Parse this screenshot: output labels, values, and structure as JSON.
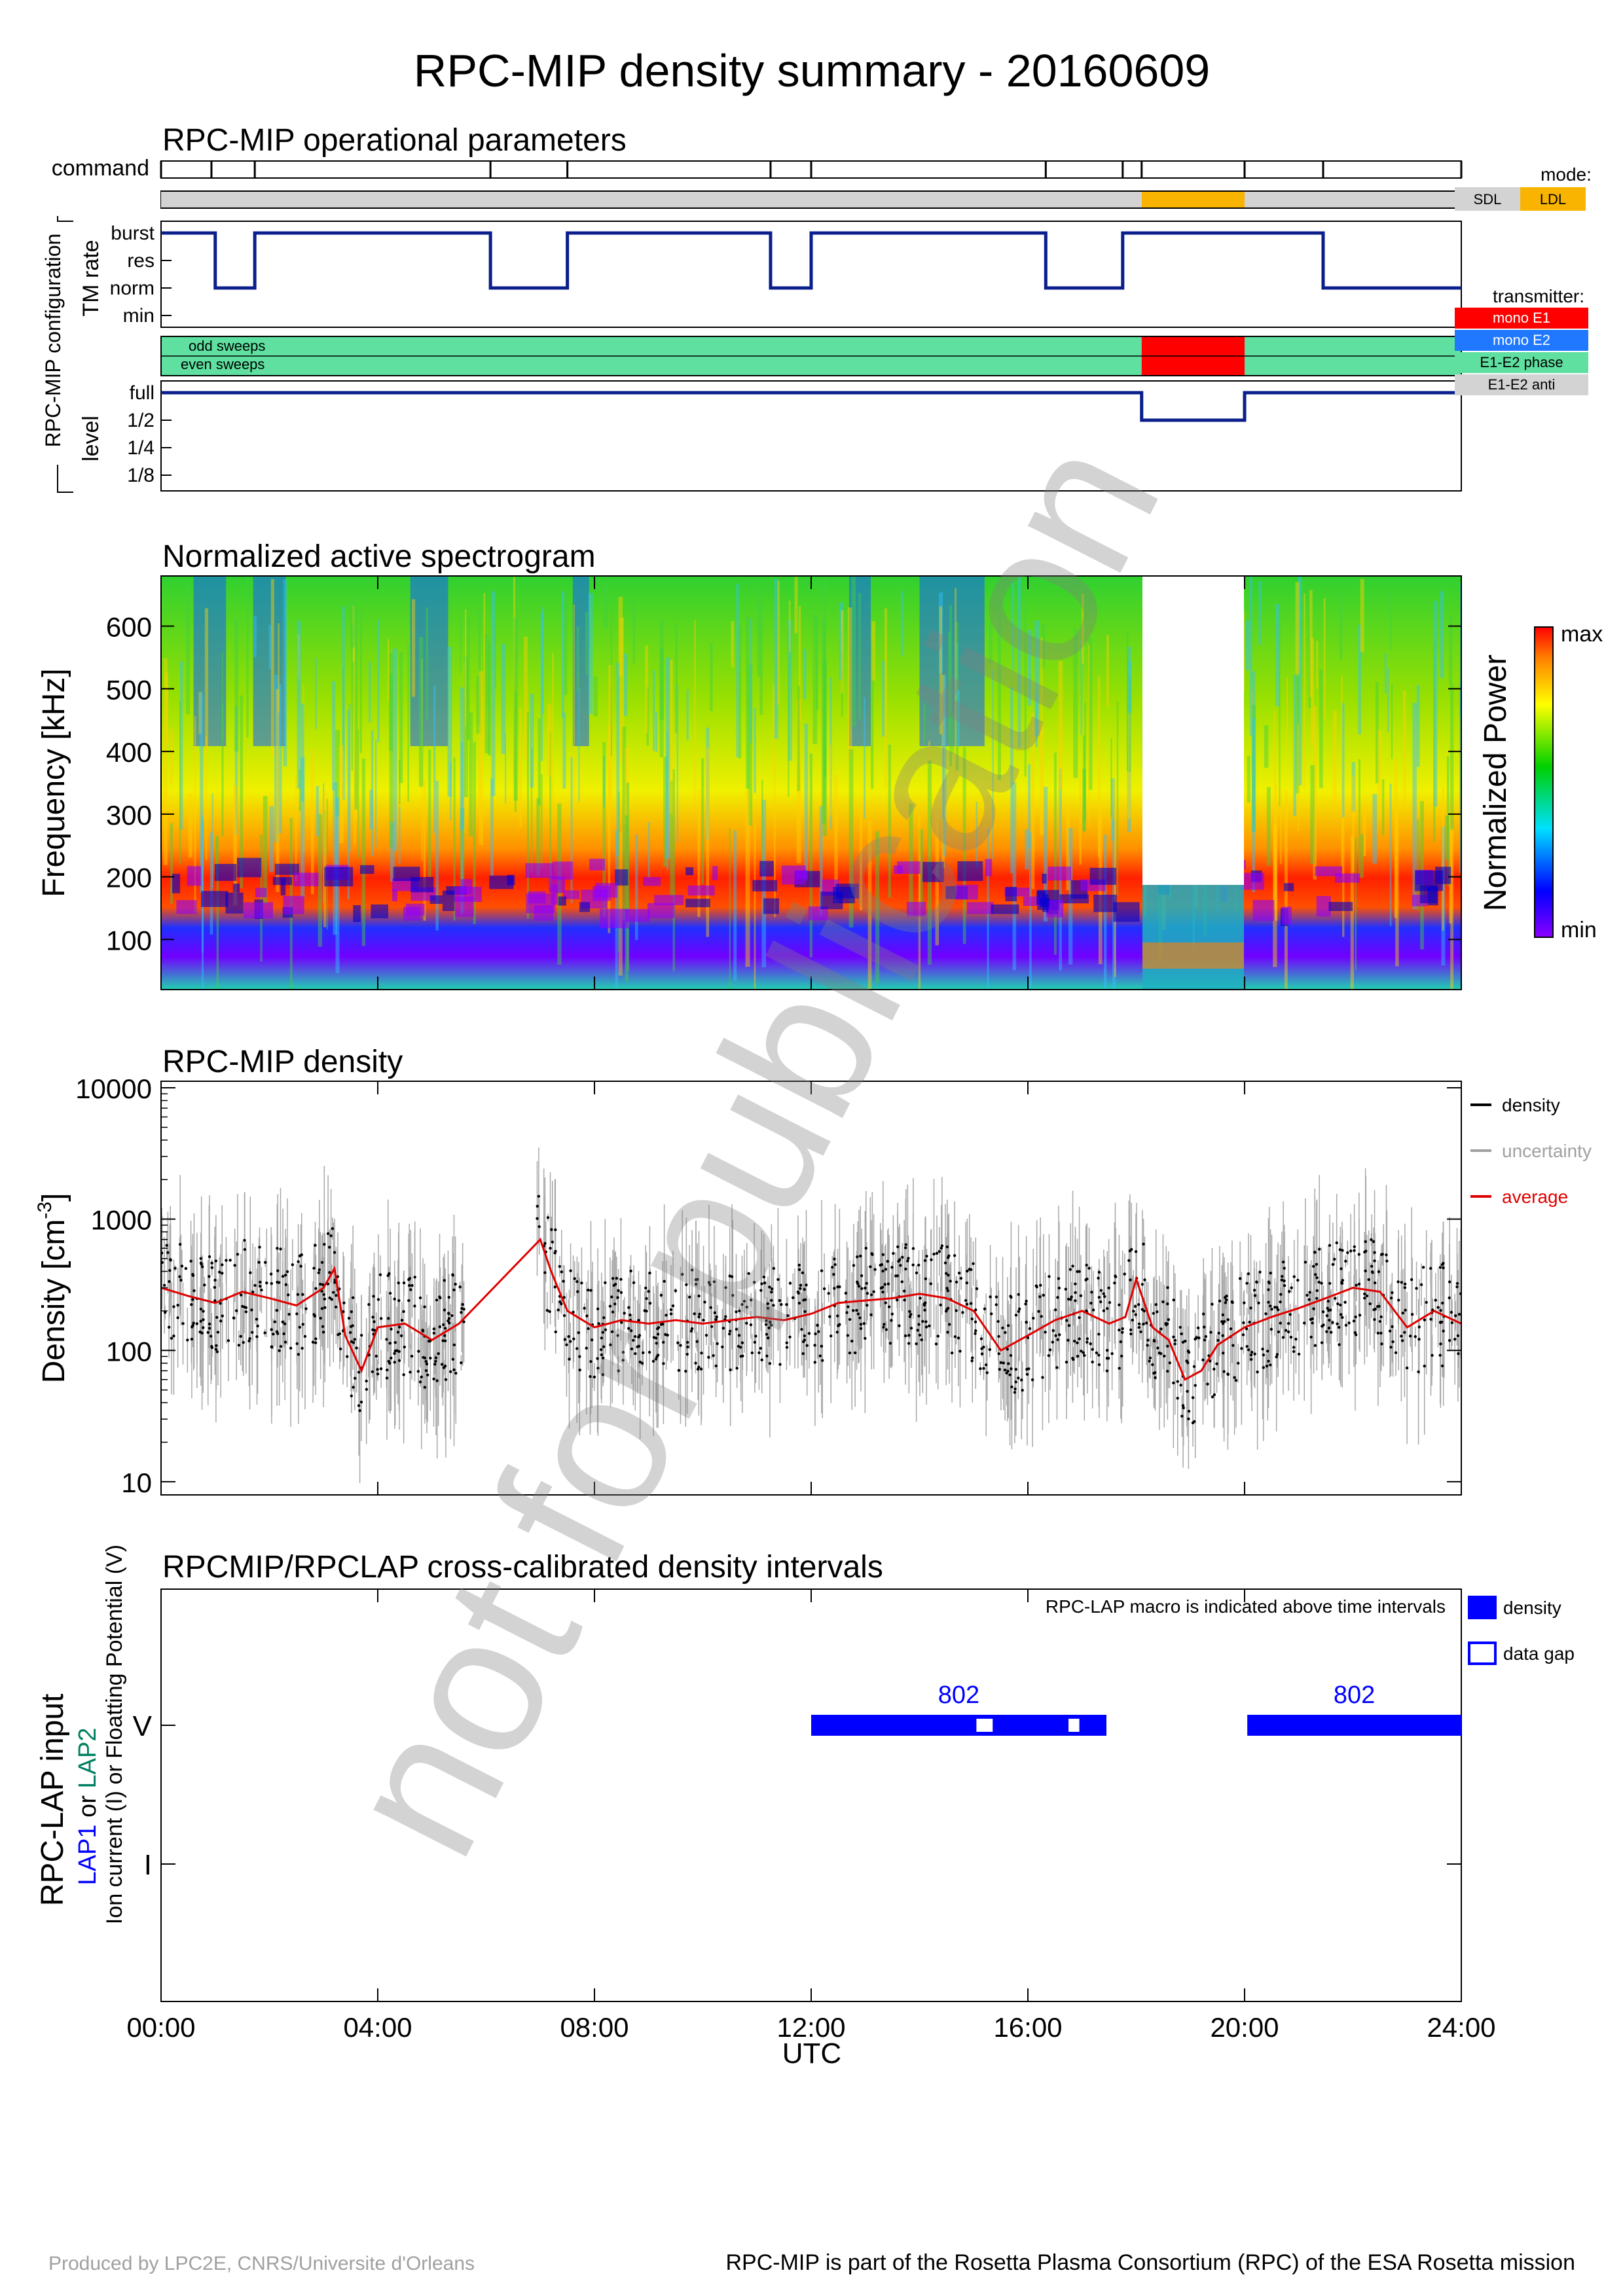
{
  "title": "RPC-MIP density summary - 20160609",
  "ops": {
    "title": "RPC-MIP operational parameters",
    "command_label": "command",
    "command_times": [
      0,
      0.93,
      1.73,
      6.08,
      7.5,
      11.25,
      12.0,
      16.33,
      17.75,
      18.1,
      20.0,
      21.45,
      24.0
    ],
    "mode_segments": [
      {
        "from": 0,
        "to": 18.1,
        "mode": "SDL"
      },
      {
        "from": 18.1,
        "to": 20.0,
        "mode": "LDL"
      },
      {
        "from": 20.0,
        "to": 24.0,
        "mode": "SDL"
      }
    ],
    "config_label": "RPC-MIP configuration",
    "tm_rate": {
      "label": "TM rate",
      "levels": [
        "burst",
        "res",
        "norm",
        "min"
      ],
      "steps": [
        {
          "from": 0,
          "to": 1.0,
          "level": "burst"
        },
        {
          "from": 1.0,
          "to": 1.73,
          "level": "norm"
        },
        {
          "from": 1.73,
          "to": 6.08,
          "level": "burst"
        },
        {
          "from": 6.08,
          "to": 7.5,
          "level": "norm"
        },
        {
          "from": 7.5,
          "to": 11.25,
          "level": "burst"
        },
        {
          "from": 11.25,
          "to": 12.0,
          "level": "norm"
        },
        {
          "from": 12.0,
          "to": 16.33,
          "level": "burst"
        },
        {
          "from": 16.33,
          "to": 17.75,
          "level": "norm"
        },
        {
          "from": 17.75,
          "to": 21.45,
          "level": "burst"
        },
        {
          "from": 21.45,
          "to": 24.0,
          "level": "norm"
        }
      ]
    },
    "sweeps": {
      "odd_label": "odd sweeps",
      "even_label": "even sweeps",
      "segments": [
        {
          "from": 0,
          "to": 18.1,
          "transmitter": "E1-E2 phase"
        },
        {
          "from": 18.1,
          "to": 20.0,
          "transmitter": "mono E1"
        },
        {
          "from": 20.0,
          "to": 24.0,
          "transmitter": "E1-E2 phase"
        }
      ]
    },
    "level": {
      "label": "level",
      "levels": [
        "full",
        "1/2",
        "1/4",
        "1/8"
      ],
      "steps": [
        {
          "from": 0,
          "to": 18.1,
          "level": "full"
        },
        {
          "from": 18.1,
          "to": 20.0,
          "level": "1/2"
        },
        {
          "from": 20.0,
          "to": 24.0,
          "level": "full"
        }
      ]
    }
  },
  "legends": {
    "mode_title": "mode:",
    "mode_items": [
      {
        "label": "SDL",
        "color": "#d3d3d3"
      },
      {
        "label": "LDL",
        "color": "#f8b400"
      }
    ],
    "transmitter_title": "transmitter:",
    "transmitter_items": [
      {
        "label": "mono E1",
        "color": "#ff0000",
        "text_color": "#ffffff"
      },
      {
        "label": "mono E2",
        "color": "#1f78ff",
        "text_color": "#ffffff"
      },
      {
        "label": "E1-E2 phase",
        "color": "#5fe0a0",
        "text_color": "#000000"
      },
      {
        "label": "E1-E2 anti",
        "color": "#d3d3d3",
        "text_color": "#000000"
      }
    ]
  },
  "spectrogram": {
    "title": "Normalized active spectrogram",
    "ylabel": "Frequency [kHz]",
    "yticks": [
      "100",
      "200",
      "300",
      "400",
      "500",
      "600"
    ],
    "colorbar_label": "Normalized Power",
    "colorbar_max": "max",
    "colorbar_min": "min"
  },
  "density": {
    "title": "RPC-MIP density",
    "ylabel": "Density [cm",
    "ylabel_sup": "-3",
    "ylabel_end": "]",
    "yticks": [
      "10",
      "100",
      "1000",
      "10000"
    ],
    "legend": [
      {
        "label": "density",
        "color": "#000000"
      },
      {
        "label": "uncertainty",
        "color": "#a0a0a0"
      },
      {
        "label": "average",
        "color": "#e00000"
      }
    ]
  },
  "lap": {
    "title": "RPCMIP/RPCLAP cross-calibrated density intervals",
    "note": "RPC-LAP macro is indicated above time intervals",
    "ylabel_main": "RPC-LAP input",
    "ylabel_lap1": "LAP1",
    "ylabel_or": " or ",
    "ylabel_lap2": "LAP2",
    "ylabel_line3": "Ion current (I) or Floatting Potential (V)",
    "yticks": [
      "I",
      "V"
    ],
    "legend": [
      {
        "label": "density"
      },
      {
        "label": "data gap"
      }
    ],
    "intervals": [
      {
        "from": 12.0,
        "to": 17.45,
        "input": "V",
        "macro": "802"
      },
      {
        "from": 20.05,
        "to": 24.0,
        "input": "V",
        "macro": "802"
      }
    ],
    "gaps": [
      {
        "from": 15.05,
        "to": 15.35
      },
      {
        "from": 16.75,
        "to": 16.95
      }
    ],
    "lap1_color": "#0000ff",
    "lap2_color": "#008060",
    "interval_color": "#0000ff"
  },
  "xaxis": {
    "ticks": [
      "00:00",
      "04:00",
      "08:00",
      "12:00",
      "16:00",
      "20:00",
      "24:00"
    ],
    "label": "UTC"
  },
  "footer": {
    "left": "Produced by LPC2E, CNRS/Universite d'Orleans",
    "right": "RPC-MIP is part of the Rosetta Plasma Consortium (RPC) of the ESA Rosetta mission"
  },
  "watermark": "not for publication",
  "chart_data": [
    {
      "type": "line",
      "title": "RPC-MIP operational parameters",
      "ylabel": "TM rate",
      "categories": [
        "burst",
        "res",
        "norm",
        "min"
      ],
      "series": [
        {
          "x": [
            0,
            1.0,
            1.0,
            1.73,
            1.73,
            6.08,
            6.08,
            7.5,
            7.5,
            11.25,
            11.25,
            12.0,
            12.0,
            16.33,
            16.33,
            17.75,
            17.75,
            21.45,
            21.45,
            24.0
          ],
          "values": [
            "burst",
            "burst",
            "norm",
            "norm",
            "burst",
            "burst",
            "norm",
            "norm",
            "burst",
            "burst",
            "norm",
            "norm",
            "burst",
            "burst",
            "norm",
            "norm",
            "burst",
            "burst",
            "norm",
            "norm"
          ]
        }
      ]
    },
    {
      "type": "heatmap",
      "title": "Normalized active spectrogram",
      "ylabel": "Frequency [kHz]",
      "x_range": [
        0,
        24
      ],
      "ylim": [
        20,
        680
      ],
      "colorbar": [
        "min",
        "max"
      ]
    },
    {
      "type": "scatter",
      "title": "RPC-MIP density",
      "ylabel": "Density [cm-3]",
      "yscale": "log",
      "ylim": [
        10,
        10000
      ],
      "x_range": [
        0,
        24
      ],
      "series": [
        {
          "name": "average",
          "x": [
            0,
            0.5,
            1.0,
            1.5,
            2.0,
            2.5,
            3.0,
            3.2,
            3.4,
            3.7,
            4.0,
            4.5,
            5.0,
            5.5,
            7.0,
            7.2,
            7.5,
            8.0,
            8.5,
            9.0,
            9.5,
            10.0,
            10.5,
            11.0,
            11.5,
            12.0,
            12.5,
            13.0,
            13.5,
            14.0,
            14.5,
            15.0,
            15.5,
            16.0,
            16.5,
            17.0,
            17.5,
            17.8,
            18.0,
            18.3,
            18.6,
            18.9,
            19.2,
            19.5,
            20.0,
            20.5,
            21.0,
            21.5,
            22.0,
            22.5,
            23.0,
            23.5,
            24.0
          ],
          "values": [
            300,
            260,
            230,
            280,
            250,
            220,
            300,
            420,
            130,
            70,
            150,
            160,
            120,
            160,
            700,
            400,
            200,
            150,
            170,
            160,
            170,
            160,
            170,
            180,
            170,
            190,
            230,
            240,
            250,
            270,
            250,
            200,
            100,
            130,
            170,
            200,
            160,
            180,
            350,
            150,
            120,
            60,
            70,
            110,
            150,
            180,
            210,
            250,
            300,
            280,
            150,
            200,
            160
          ]
        }
      ]
    },
    {
      "type": "bar",
      "title": "RPCMIP/RPCLAP cross-calibrated density intervals",
      "categories": [
        "I",
        "V"
      ],
      "intervals": [
        {
          "from": 12.0,
          "to": 17.45,
          "input": "V",
          "macro": "802"
        },
        {
          "from": 20.05,
          "to": 24.0,
          "input": "V",
          "macro": "802"
        }
      ]
    }
  ]
}
